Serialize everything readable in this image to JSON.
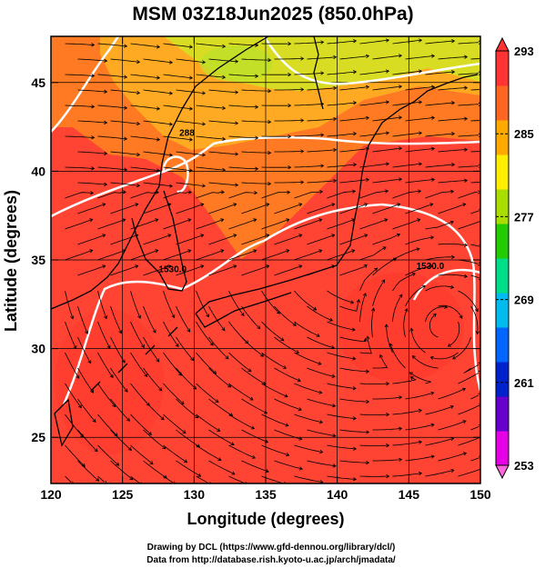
{
  "chart_data": {
    "type": "heatmap",
    "title": "MSM 03Z18Jun2025 (850.0hPa)",
    "xlabel": "Longitude (degrees)",
    "ylabel": "Latitude  (degrees)",
    "xlim": [
      120,
      150
    ],
    "ylim": [
      22.4,
      47.6
    ],
    "x_ticks": [
      "120",
      "125",
      "130",
      "135",
      "140",
      "145",
      "150"
    ],
    "x_tick_values": [
      120,
      125,
      130,
      135,
      140,
      145,
      150
    ],
    "y_ticks": [
      "25",
      "30",
      "35",
      "40",
      "45"
    ],
    "y_tick_values": [
      25,
      30,
      35,
      40,
      45
    ],
    "grid": true,
    "colorbar": {
      "min": 253,
      "max": 293,
      "labels": [
        "293",
        "285",
        "277",
        "269",
        "261",
        "253"
      ],
      "label_values": [
        293,
        285,
        277,
        269,
        261,
        253
      ],
      "colors": [
        "#e600e6",
        "#6600cc",
        "#0022cc",
        "#0066ff",
        "#00bbee",
        "#00dd88",
        "#22cc00",
        "#aadd00",
        "#ffee00",
        "#ffaa00",
        "#ff6622",
        "#ff3333"
      ]
    },
    "field_colors": {
      "warm": "#ff4433",
      "mid": "#ff7722",
      "cool": "#ffaa22",
      "coolest": "#ccdd22"
    },
    "contour_labels": [
      {
        "text": "288",
        "lon": 129.5,
        "lat": 42.0
      },
      {
        "text": "1530.0",
        "lon": 128.5,
        "lat": 34.3
      },
      {
        "text": "1530.0",
        "lon": 146.5,
        "lat": 34.5
      }
    ]
  },
  "credits": {
    "line1": "Drawing by DCL (https://www.gfd-dennou.org/library/dcl/)",
    "line2": "Data from http://database.rish.kyoto-u.ac.jp/arch/jmadata/"
  }
}
